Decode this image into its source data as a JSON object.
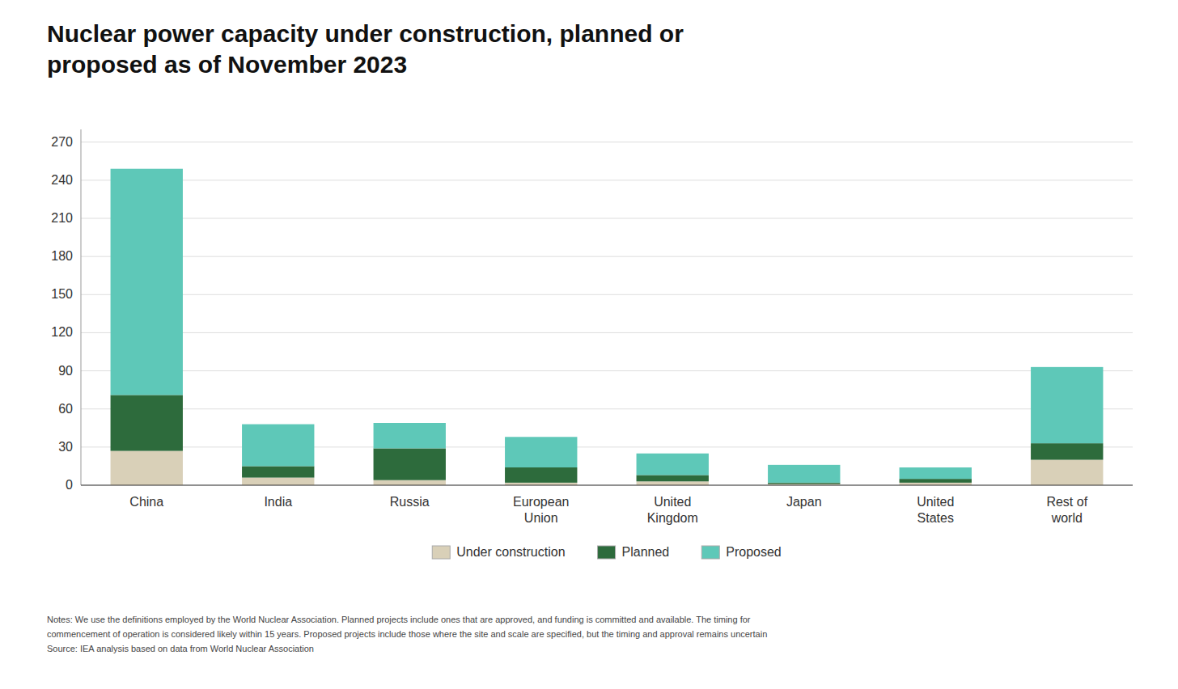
{
  "chart_data": {
    "type": "bar",
    "stacked": true,
    "grid": true,
    "legend": "bottom",
    "title": "Nuclear power capacity under construction, planned or\nproposed as of November 2023",
    "categories": [
      "China",
      "India",
      "Russia",
      "European\nUnion",
      "United\nKingdom",
      "Japan",
      "United\nStates",
      "Rest of\nworld"
    ],
    "series": [
      {
        "name": "Under construction",
        "color": "#d9d0b8",
        "values": [
          27,
          6,
          4,
          2,
          3,
          1,
          2,
          20
        ]
      },
      {
        "name": "Planned",
        "color": "#2d6b3c",
        "values": [
          44,
          9,
          25,
          12,
          5,
          1,
          3,
          13
        ]
      },
      {
        "name": "Proposed",
        "color": "#5ec8b8",
        "values": [
          178,
          33,
          20,
          24,
          17,
          14,
          9,
          60
        ]
      }
    ],
    "ylim": [
      0,
      280
    ],
    "yticks": [
      0,
      30,
      60,
      90,
      120,
      150,
      180,
      210,
      240,
      270
    ],
    "notes": "Notes: We use the definitions employed by the World Nuclear Association. Planned projects include ones that are approved, and funding is committed and available. The timing for\ncommencement of operation is considered likely within 15 years. Proposed projects include those where the site and scale are specified, but the timing and approval remains uncertain\nSource: IEA analysis based on data from World Nuclear Association"
  }
}
